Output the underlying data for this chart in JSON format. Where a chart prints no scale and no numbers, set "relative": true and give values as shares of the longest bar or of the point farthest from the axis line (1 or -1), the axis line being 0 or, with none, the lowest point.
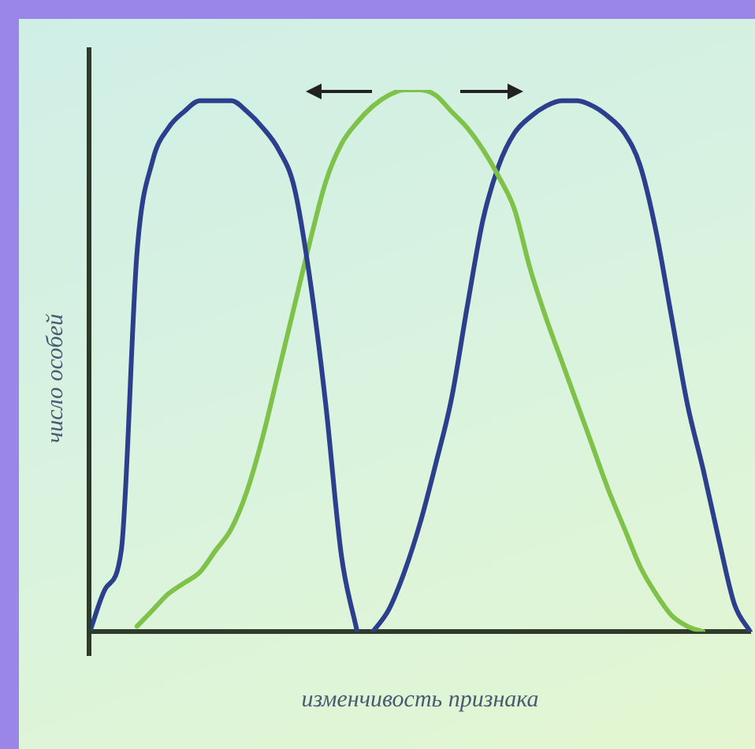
{
  "chart_data": {
    "type": "line",
    "relative": true,
    "xlabel": "изменчивость признака",
    "ylabel": "число особей",
    "categories": [
      null,
      null,
      null,
      null,
      null,
      null,
      null,
      null,
      null,
      null,
      null,
      null,
      null,
      null,
      null,
      null,
      null,
      null,
      null,
      null,
      null,
      null,
      null,
      null,
      null,
      null,
      null,
      null,
      null,
      null,
      null,
      null,
      null,
      null,
      null,
      null,
      null,
      null,
      null,
      null,
      null,
      null,
      null
    ],
    "series": [
      {
        "color": "#2b3f8c",
        "values": [
          0,
          0.08,
          0.15,
          0.7,
          0.87,
          0.93,
          0.96,
          0.98,
          0.98,
          0.98,
          0.96,
          0.93,
          0.89,
          0.82,
          0.65,
          0.42,
          0.14,
          0,
          null,
          null,
          null,
          null,
          null,
          null,
          null,
          null,
          null,
          null,
          null,
          null,
          null,
          null,
          null,
          null,
          null,
          null,
          null,
          null,
          null,
          null,
          null,
          null,
          null
        ]
      },
      {
        "color": "#7fc24a",
        "values": [
          null,
          null,
          null,
          0.01,
          0.04,
          0.07,
          0.09,
          0.11,
          0.15,
          0.19,
          0.26,
          0.36,
          0.48,
          0.6,
          0.72,
          0.83,
          0.9,
          0.94,
          0.97,
          0.99,
          1,
          1,
          0.99,
          0.96,
          0.93,
          0.89,
          0.84,
          0.78,
          0.67,
          0.58,
          0.5,
          0.42,
          0.34,
          0.26,
          0.19,
          0.12,
          0.07,
          0.03,
          0.01,
          0,
          null,
          null,
          null
        ]
      },
      {
        "color": "#2b3f8c",
        "values": [
          null,
          null,
          null,
          null,
          null,
          null,
          null,
          null,
          null,
          null,
          null,
          null,
          null,
          null,
          null,
          null,
          null,
          null,
          0,
          0.04,
          0.11,
          0.2,
          0.31,
          0.43,
          0.6,
          0.76,
          0.86,
          0.92,
          0.95,
          0.97,
          0.98,
          0.98,
          0.97,
          0.95,
          0.92,
          0.86,
          0.74,
          0.58,
          0.42,
          0.3,
          0.17,
          0.05,
          0
        ]
      }
    ],
    "marker": "none",
    "grid": false,
    "legend": false
  }
}
